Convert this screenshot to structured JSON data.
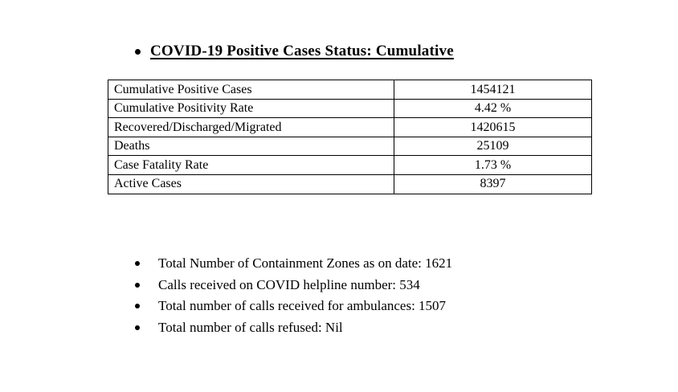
{
  "page": {
    "background_color": "#ffffff",
    "text_color": "#000000",
    "border_color": "#000000"
  },
  "heading": {
    "title": "COVID-19 Positive Cases Status: Cumulative"
  },
  "table": {
    "rows": [
      {
        "label": "Cumulative Positive Cases",
        "value": "1454121"
      },
      {
        "label": "Cumulative Positivity Rate",
        "value": "4.42 %"
      },
      {
        "label": "Recovered/Discharged/Migrated",
        "value": "1420615"
      },
      {
        "label": "Deaths",
        "value": "25109"
      },
      {
        "label": "Case Fatality Rate",
        "value": "1.73 %"
      },
      {
        "label": "Active Cases",
        "value": "8397"
      }
    ]
  },
  "bullets": [
    "Total Number of Containment Zones as on date: 1621",
    "Calls received on COVID helpline number: 534",
    "Total number of calls received for ambulances: 1507",
    "Total number of calls refused: Nil"
  ]
}
